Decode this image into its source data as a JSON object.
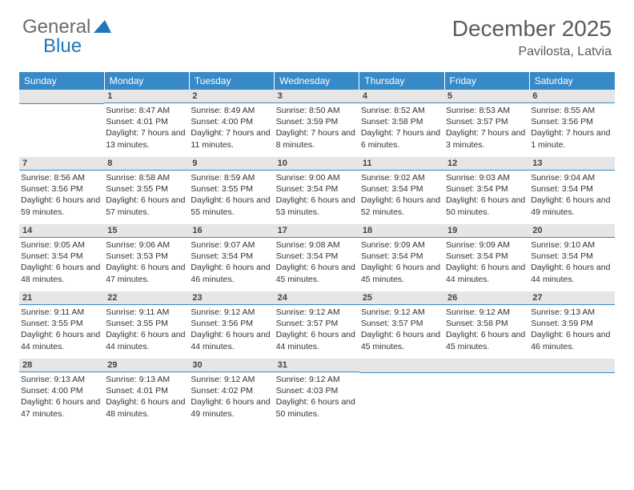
{
  "brand": {
    "word1": "General",
    "word2": "Blue",
    "color_general": "#6a6a6a",
    "color_blue": "#2176b8",
    "fontsize": 24
  },
  "title": "December 2025",
  "location": "Pavilosta, Latvia",
  "title_fontsize": 28,
  "subtitle_fontsize": 16,
  "title_color": "#5a5a5a",
  "calendar": {
    "header_bg": "#3789c7",
    "header_fg": "#ffffff",
    "header_fontsize": 12,
    "daynum_bg": "#e6e6e6",
    "daynum_border": "#3789c7",
    "daynum_fontsize": 11,
    "cell_fontsize": 10.5,
    "cell_color": "#333333",
    "columns": [
      "Sunday",
      "Monday",
      "Tuesday",
      "Wednesday",
      "Thursday",
      "Friday",
      "Saturday"
    ],
    "weeks": [
      [
        {
          "num": "",
          "sunrise": "",
          "sunset": "",
          "daylight": ""
        },
        {
          "num": "1",
          "sunrise": "8:47 AM",
          "sunset": "4:01 PM",
          "daylight": "7 hours and 13 minutes."
        },
        {
          "num": "2",
          "sunrise": "8:49 AM",
          "sunset": "4:00 PM",
          "daylight": "7 hours and 11 minutes."
        },
        {
          "num": "3",
          "sunrise": "8:50 AM",
          "sunset": "3:59 PM",
          "daylight": "7 hours and 8 minutes."
        },
        {
          "num": "4",
          "sunrise": "8:52 AM",
          "sunset": "3:58 PM",
          "daylight": "7 hours and 6 minutes."
        },
        {
          "num": "5",
          "sunrise": "8:53 AM",
          "sunset": "3:57 PM",
          "daylight": "7 hours and 3 minutes."
        },
        {
          "num": "6",
          "sunrise": "8:55 AM",
          "sunset": "3:56 PM",
          "daylight": "7 hours and 1 minute."
        }
      ],
      [
        {
          "num": "7",
          "sunrise": "8:56 AM",
          "sunset": "3:56 PM",
          "daylight": "6 hours and 59 minutes."
        },
        {
          "num": "8",
          "sunrise": "8:58 AM",
          "sunset": "3:55 PM",
          "daylight": "6 hours and 57 minutes."
        },
        {
          "num": "9",
          "sunrise": "8:59 AM",
          "sunset": "3:55 PM",
          "daylight": "6 hours and 55 minutes."
        },
        {
          "num": "10",
          "sunrise": "9:00 AM",
          "sunset": "3:54 PM",
          "daylight": "6 hours and 53 minutes."
        },
        {
          "num": "11",
          "sunrise": "9:02 AM",
          "sunset": "3:54 PM",
          "daylight": "6 hours and 52 minutes."
        },
        {
          "num": "12",
          "sunrise": "9:03 AM",
          "sunset": "3:54 PM",
          "daylight": "6 hours and 50 minutes."
        },
        {
          "num": "13",
          "sunrise": "9:04 AM",
          "sunset": "3:54 PM",
          "daylight": "6 hours and 49 minutes."
        }
      ],
      [
        {
          "num": "14",
          "sunrise": "9:05 AM",
          "sunset": "3:54 PM",
          "daylight": "6 hours and 48 minutes."
        },
        {
          "num": "15",
          "sunrise": "9:06 AM",
          "sunset": "3:53 PM",
          "daylight": "6 hours and 47 minutes."
        },
        {
          "num": "16",
          "sunrise": "9:07 AM",
          "sunset": "3:54 PM",
          "daylight": "6 hours and 46 minutes."
        },
        {
          "num": "17",
          "sunrise": "9:08 AM",
          "sunset": "3:54 PM",
          "daylight": "6 hours and 45 minutes."
        },
        {
          "num": "18",
          "sunrise": "9:09 AM",
          "sunset": "3:54 PM",
          "daylight": "6 hours and 45 minutes."
        },
        {
          "num": "19",
          "sunrise": "9:09 AM",
          "sunset": "3:54 PM",
          "daylight": "6 hours and 44 minutes."
        },
        {
          "num": "20",
          "sunrise": "9:10 AM",
          "sunset": "3:54 PM",
          "daylight": "6 hours and 44 minutes."
        }
      ],
      [
        {
          "num": "21",
          "sunrise": "9:11 AM",
          "sunset": "3:55 PM",
          "daylight": "6 hours and 44 minutes."
        },
        {
          "num": "22",
          "sunrise": "9:11 AM",
          "sunset": "3:55 PM",
          "daylight": "6 hours and 44 minutes."
        },
        {
          "num": "23",
          "sunrise": "9:12 AM",
          "sunset": "3:56 PM",
          "daylight": "6 hours and 44 minutes."
        },
        {
          "num": "24",
          "sunrise": "9:12 AM",
          "sunset": "3:57 PM",
          "daylight": "6 hours and 44 minutes."
        },
        {
          "num": "25",
          "sunrise": "9:12 AM",
          "sunset": "3:57 PM",
          "daylight": "6 hours and 45 minutes."
        },
        {
          "num": "26",
          "sunrise": "9:12 AM",
          "sunset": "3:58 PM",
          "daylight": "6 hours and 45 minutes."
        },
        {
          "num": "27",
          "sunrise": "9:13 AM",
          "sunset": "3:59 PM",
          "daylight": "6 hours and 46 minutes."
        }
      ],
      [
        {
          "num": "28",
          "sunrise": "9:13 AM",
          "sunset": "4:00 PM",
          "daylight": "6 hours and 47 minutes."
        },
        {
          "num": "29",
          "sunrise": "9:13 AM",
          "sunset": "4:01 PM",
          "daylight": "6 hours and 48 minutes."
        },
        {
          "num": "30",
          "sunrise": "9:12 AM",
          "sunset": "4:02 PM",
          "daylight": "6 hours and 49 minutes."
        },
        {
          "num": "31",
          "sunrise": "9:12 AM",
          "sunset": "4:03 PM",
          "daylight": "6 hours and 50 minutes."
        },
        {
          "num": "",
          "sunrise": "",
          "sunset": "",
          "daylight": ""
        },
        {
          "num": "",
          "sunrise": "",
          "sunset": "",
          "daylight": ""
        },
        {
          "num": "",
          "sunrise": "",
          "sunset": "",
          "daylight": ""
        }
      ]
    ],
    "labels": {
      "sunrise": "Sunrise:",
      "sunset": "Sunset:",
      "daylight": "Daylight:"
    }
  }
}
